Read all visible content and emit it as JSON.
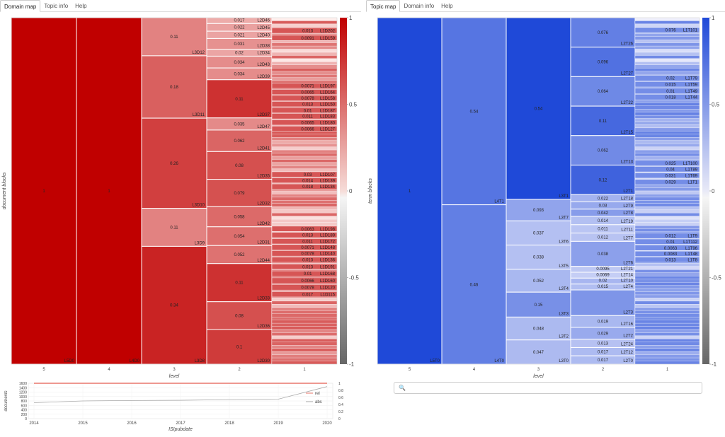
{
  "left_tabs": [
    {
      "label": "Domain map",
      "active": true
    },
    {
      "label": "Topic info",
      "active": false
    },
    {
      "label": "Help",
      "active": false
    }
  ],
  "right_tabs": [
    {
      "label": "Topic map",
      "active": true
    },
    {
      "label": "Domain info",
      "active": false
    },
    {
      "label": "Help",
      "active": false
    }
  ],
  "colors": {
    "red_full": "#c00000",
    "blue_full": "#1f49d8"
  },
  "domain_map": {
    "ylabel": "document blocks",
    "xlabel": "level",
    "colorbar": {
      "ticks": [
        "1",
        "0.5",
        "0",
        "-0.5",
        "-1"
      ]
    },
    "columns": [
      {
        "level_label": "5",
        "blocks": [
          {
            "label": "L5D0",
            "value": "1",
            "frac": 1.0
          }
        ]
      },
      {
        "level_label": "4",
        "blocks": [
          {
            "label": "L4D0",
            "value": "1",
            "frac": 1.0
          }
        ]
      },
      {
        "level_label": "3",
        "blocks": [
          {
            "label": "L3D12",
            "value": "0.11",
            "frac": 0.11
          },
          {
            "label": "L3D11",
            "value": "0.18",
            "frac": 0.18
          },
          {
            "label": "L3D10",
            "value": "0.26",
            "frac": 0.26
          },
          {
            "label": "L3D9",
            "value": "0.11",
            "frac": 0.11
          },
          {
            "label": "L3D8",
            "value": "0.34",
            "frac": 0.34
          }
        ]
      },
      {
        "level_label": "2",
        "blocks": [
          {
            "label": "L2D46",
            "value": "0.017",
            "frac": 0.017
          },
          {
            "label": "L2D45",
            "value": "0.022",
            "frac": 0.022
          },
          {
            "label": "L2D40",
            "value": "0.021",
            "frac": 0.021
          },
          {
            "label": "L2D38",
            "value": "0.031",
            "frac": 0.031
          },
          {
            "label": "L2D34",
            "value": "0.02",
            "frac": 0.02
          },
          {
            "label": "L2D43",
            "value": "0.034",
            "frac": 0.034
          },
          {
            "label": "L2D39",
            "value": "0.034",
            "frac": 0.034
          },
          {
            "label": "L2D37",
            "value": "0.11",
            "frac": 0.11
          },
          {
            "label": "L2D47",
            "value": "0.035",
            "frac": 0.035
          },
          {
            "label": "L2D41",
            "value": "0.062",
            "frac": 0.062
          },
          {
            "label": "L2D35",
            "value": "0.08",
            "frac": 0.08
          },
          {
            "label": "L2D32",
            "value": "0.079",
            "frac": 0.079
          },
          {
            "label": "L2D42",
            "value": "0.058",
            "frac": 0.058
          },
          {
            "label": "L2D31",
            "value": "0.054",
            "frac": 0.054
          },
          {
            "label": "L2D44",
            "value": "0.052",
            "frac": 0.052
          },
          {
            "label": "L2D33",
            "value": "0.11",
            "frac": 0.11
          },
          {
            "label": "L2D36",
            "value": "0.08",
            "frac": 0.08
          },
          {
            "label": "L2D30",
            "value": "0.1",
            "frac": 0.1
          }
        ]
      },
      {
        "level_label": "1",
        "labels": [
          {
            "label": "L1D202",
            "value": "0.013",
            "y": 0.042
          },
          {
            "label": "L1D159",
            "value": "0.0091",
            "y": 0.063
          },
          {
            "label": "L1D197",
            "value": "0.0071",
            "y": 0.201
          },
          {
            "label": "L1D164",
            "value": "0.0065",
            "y": 0.219
          },
          {
            "label": "L1D158",
            "value": "0.0078",
            "y": 0.237
          },
          {
            "label": "L1D150",
            "value": "0.013",
            "y": 0.254
          },
          {
            "label": "L1D187",
            "value": "0.01",
            "y": 0.272
          },
          {
            "label": "L1D183",
            "value": "0.011",
            "y": 0.289
          },
          {
            "label": "L1D180",
            "value": "0.0065",
            "y": 0.307
          },
          {
            "label": "L1D127",
            "value": "0.0066",
            "y": 0.325
          },
          {
            "label": "L1D107",
            "value": "0.03",
            "y": 0.457
          },
          {
            "label": "L1D139",
            "value": "0.014",
            "y": 0.474
          },
          {
            "label": "L1D134",
            "value": "0.018",
            "y": 0.492
          },
          {
            "label": "L1D198",
            "value": "0.0063",
            "y": 0.614
          },
          {
            "label": "L1D189",
            "value": "0.013",
            "y": 0.632
          },
          {
            "label": "L1D172",
            "value": "0.011",
            "y": 0.65
          },
          {
            "label": "L1D148",
            "value": "0.0071",
            "y": 0.667
          },
          {
            "label": "L1D140",
            "value": "0.0078",
            "y": 0.685
          },
          {
            "label": "L1D136",
            "value": "0.013",
            "y": 0.703
          },
          {
            "label": "L1D191",
            "value": "0.013",
            "y": 0.723
          },
          {
            "label": "L1D168",
            "value": "0.01",
            "y": 0.743
          },
          {
            "label": "L1D160",
            "value": "0.0066",
            "y": 0.763
          },
          {
            "label": "L1D120",
            "value": "0.0078",
            "y": 0.783
          },
          {
            "label": "L1D115",
            "value": "0.017",
            "y": 0.803
          }
        ]
      }
    ]
  },
  "topic_map": {
    "ylabel": "term blocks",
    "xlabel": "level",
    "colorbar": {
      "ticks": [
        "1",
        "0.5",
        "0",
        "-0.5",
        "-1"
      ]
    },
    "columns": [
      {
        "level_label": "5",
        "blocks": [
          {
            "label": "L5T0",
            "value": "1",
            "frac": 1.0
          }
        ]
      },
      {
        "level_label": "4",
        "blocks": [
          {
            "label": "L4T1",
            "value": "0.54",
            "frac": 0.54
          },
          {
            "label": "L4T0",
            "value": "0.46",
            "frac": 0.46
          }
        ]
      },
      {
        "level_label": "3",
        "blocks": [
          {
            "label": "L3T1",
            "value": "0.54",
            "frac": 0.54
          },
          {
            "label": "L3T7",
            "value": "0.093",
            "frac": 0.064
          },
          {
            "label": "L3T6",
            "value": "0.037",
            "frac": 0.072
          },
          {
            "label": "L3T5",
            "value": "0.038",
            "frac": 0.072
          },
          {
            "label": "L3T4",
            "value": "0.052",
            "frac": 0.068
          },
          {
            "label": "L3T3",
            "value": "0.15",
            "frac": 0.074
          },
          {
            "label": "L3T2",
            "value": "0.048",
            "frac": 0.068
          },
          {
            "label": "L3T0",
            "value": "0.047",
            "frac": 0.072
          }
        ]
      },
      {
        "level_label": "2",
        "blocks": [
          {
            "label": "L2T26",
            "value": "0.076",
            "frac": 0.085
          },
          {
            "label": "L2T27",
            "value": "0.096",
            "frac": 0.085
          },
          {
            "label": "L2T22",
            "value": "0.064",
            "frac": 0.085
          },
          {
            "label": "L2T15",
            "value": "0.11",
            "frac": 0.085
          },
          {
            "label": "L2T13",
            "value": "0.062",
            "frac": 0.085
          },
          {
            "label": "L2T1",
            "value": "0.12",
            "frac": 0.085
          },
          {
            "label": "L2T18",
            "value": "0.022",
            "frac": 0.021
          },
          {
            "label": "L2T9",
            "value": "0.03",
            "frac": 0.021
          },
          {
            "label": "L2T8",
            "value": "0.042",
            "frac": 0.021
          },
          {
            "label": "L2T19",
            "value": "0.014",
            "frac": 0.024
          },
          {
            "label": "L2T11",
            "value": "0.011",
            "frac": 0.024
          },
          {
            "label": "L2T7",
            "value": "0.012",
            "frac": 0.024
          },
          {
            "label": "L2T6",
            "value": "0.038",
            "frac": 0.072
          },
          {
            "label": "L2T21",
            "value": "0.0095",
            "frac": 0.017
          },
          {
            "label": "L2T14",
            "value": "0.0069",
            "frac": 0.017
          },
          {
            "label": "L2T10",
            "value": "0.02",
            "frac": 0.017
          },
          {
            "label": "L2T4",
            "value": "0.015",
            "frac": 0.017
          },
          {
            "label": "L2T3",
            "value": "",
            "frac": 0.074
          },
          {
            "label": "L2T16",
            "value": "0.019",
            "frac": 0.034
          },
          {
            "label": "L2T2",
            "value": "0.029",
            "frac": 0.034
          },
          {
            "label": "L2T24",
            "value": "0.013",
            "frac": 0.024
          },
          {
            "label": "L2T12",
            "value": "0.017",
            "frac": 0.024
          },
          {
            "label": "L2T0",
            "value": "0.017",
            "frac": 0.024
          }
        ]
      },
      {
        "level_label": "1",
        "labels": [
          {
            "label": "L1T101",
            "value": "0.076",
            "y": 0.04
          },
          {
            "label": "L1T79",
            "value": "0.02",
            "y": 0.179
          },
          {
            "label": "L1T59",
            "value": "0.015",
            "y": 0.197
          },
          {
            "label": "L1T49",
            "value": "0.01",
            "y": 0.216
          },
          {
            "label": "L1T44",
            "value": "0.018",
            "y": 0.234
          },
          {
            "label": "L1T100",
            "value": "0.025",
            "y": 0.424
          },
          {
            "label": "L1T89",
            "value": "0.04",
            "y": 0.442
          },
          {
            "label": "L1T69",
            "value": "0.031",
            "y": 0.46
          },
          {
            "label": "L1T1",
            "value": "0.029",
            "y": 0.479
          },
          {
            "label": "L1T9",
            "value": "0.012",
            "y": 0.634
          },
          {
            "label": "L1T112",
            "value": "0.01",
            "y": 0.651
          },
          {
            "label": "L1T96",
            "value": "0.0063",
            "y": 0.669
          },
          {
            "label": "L1T48",
            "value": "0.0083",
            "y": 0.686
          },
          {
            "label": "L1T8",
            "value": "0.013",
            "y": 0.703
          }
        ]
      }
    ]
  },
  "time_chart": {
    "chart_data": {
      "type": "line",
      "x": [
        2014,
        2015,
        2016,
        2017,
        2018,
        2019,
        2020
      ],
      "xlabel": "ISIpubdate",
      "ylabel": "documents",
      "xticks": [
        "2014",
        "2015",
        "2016",
        "2017",
        "2018",
        "2019",
        "2020"
      ],
      "yticks_left": [
        "1600",
        "1400",
        "1200",
        "1000",
        "800",
        "600",
        "400",
        "200",
        "0"
      ],
      "yticks_right": [
        "1",
        "0.8",
        "0.6",
        "0.4",
        "0.2",
        "0"
      ],
      "ylim_left": [
        0,
        1600
      ],
      "ylim_right": [
        0,
        1
      ],
      "series": [
        {
          "name": "rel",
          "axis": "right",
          "color": "#e8776b",
          "values": [
            1,
            1,
            1,
            1,
            1,
            1,
            1
          ]
        },
        {
          "name": "abs",
          "axis": "left",
          "color": "#aaaaaa",
          "values": [
            720,
            800,
            820,
            830,
            860,
            880,
            1450
          ]
        }
      ],
      "legend": "right"
    }
  },
  "search": {
    "placeholder": ""
  }
}
